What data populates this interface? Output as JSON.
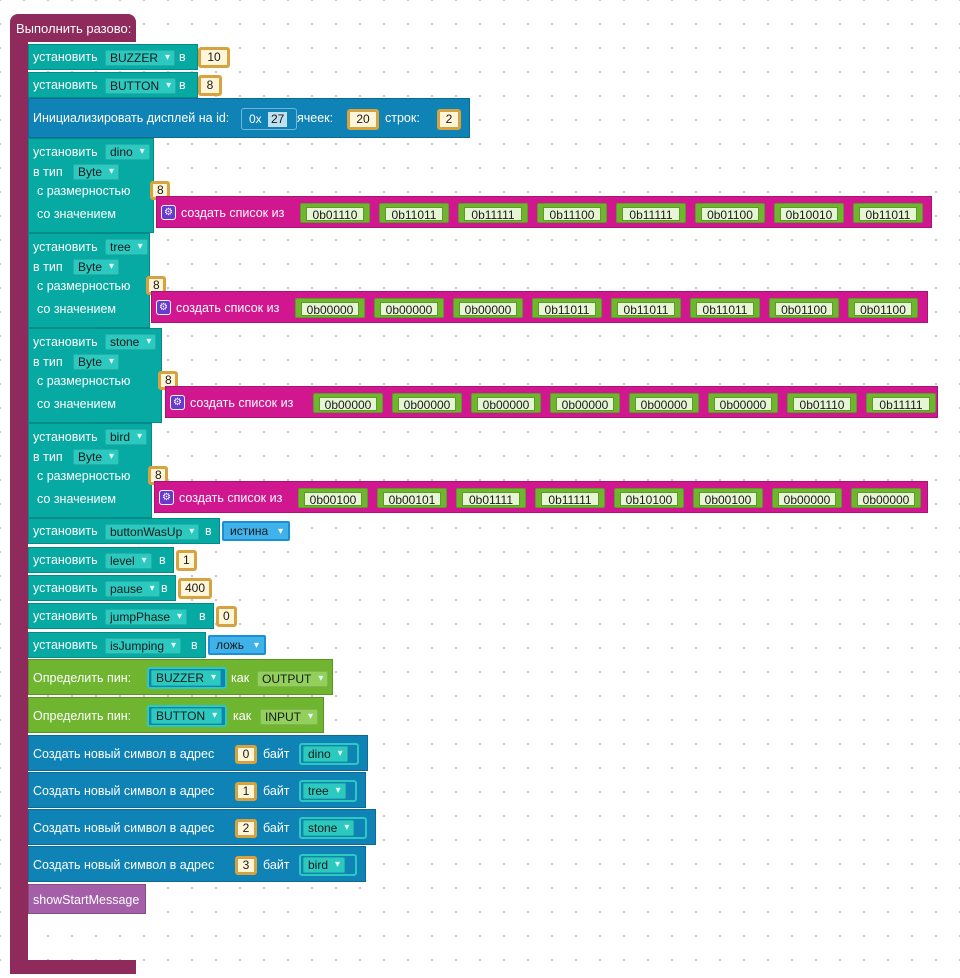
{
  "hat": {
    "label": "Выполнить разово:"
  },
  "setvars": [
    {
      "label": "установить",
      "var": "BUZZER",
      "in": "в",
      "value": "10"
    },
    {
      "label": "установить",
      "var": "BUTTON",
      "in": "в",
      "value": "8"
    }
  ],
  "display_init": {
    "label": "Инициализировать дисплей на id:",
    "hex_prefix": "0x",
    "hex_value": "27",
    "cells_label": "ячеек:",
    "cells": "20",
    "rows_label": "строк:",
    "rows": "2"
  },
  "arrays": [
    {
      "label_set": "установить",
      "name": "dino",
      "type_label": "в тип",
      "type": "Byte",
      "size_label": "с размерностью",
      "size": "8",
      "value_label": "со значением",
      "list_label": "создать список из",
      "items": [
        "0b01110",
        "0b11011",
        "0b11111",
        "0b11100",
        "0b11111",
        "0b01100",
        "0b10010",
        "0b11011"
      ]
    },
    {
      "label_set": "установить",
      "name": "tree",
      "type_label": "в тип",
      "type": "Byte",
      "size_label": "с размерностью",
      "size": "8",
      "value_label": "со значением",
      "list_label": "создать список из",
      "items": [
        "0b00000",
        "0b00000",
        "0b00000",
        "0b11011",
        "0b11011",
        "0b11011",
        "0b01100",
        "0b01100"
      ]
    },
    {
      "label_set": "установить",
      "name": "stone",
      "type_label": "в тип",
      "type": "Byte",
      "size_label": "с размерностью",
      "size": "8",
      "value_label": "со значением",
      "list_label": "создать список из",
      "items": [
        "0b00000",
        "0b00000",
        "0b00000",
        "0b00000",
        "0b00000",
        "0b00000",
        "0b01110",
        "0b11111"
      ]
    },
    {
      "label_set": "установить",
      "name": "bird",
      "type_label": "в тип",
      "type": "Byte",
      "size_label": "с размерностью",
      "size": "8",
      "value_label": "со значением",
      "list_label": "создать список из",
      "items": [
        "0b00100",
        "0b00101",
        "0b01111",
        "0b11111",
        "0b10100",
        "0b00100",
        "0b00000",
        "0b00000"
      ]
    }
  ],
  "vars2": [
    {
      "label": "установить",
      "var": "buttonWasUp",
      "in": "в",
      "value": "истина",
      "kind": "bool"
    },
    {
      "label": "установить",
      "var": "level",
      "in": "в",
      "value": "1",
      "kind": "num"
    },
    {
      "label": "установить",
      "var": "pause",
      "in": "в",
      "value": "400",
      "kind": "num"
    },
    {
      "label": "установить",
      "var": "jumpPhase",
      "in": "в",
      "value": "0",
      "kind": "num"
    },
    {
      "label": "установить",
      "var": "isJumping",
      "in": "в",
      "value": "ложь",
      "kind": "bool"
    }
  ],
  "pins": [
    {
      "label": "Определить пин:",
      "pin": "BUZZER",
      "as": "как",
      "mode": "OUTPUT"
    },
    {
      "label": "Определить пин:",
      "pin": "BUTTON",
      "as": "как",
      "mode": "INPUT"
    }
  ],
  "chars": [
    {
      "label": "Создать новый символ в адрес",
      "addr": "0",
      "bytes_label": "байт",
      "name": "dino"
    },
    {
      "label": "Создать новый символ в адрес",
      "addr": "1",
      "bytes_label": "байт",
      "name": "tree"
    },
    {
      "label": "Создать новый символ в адрес",
      "addr": "2",
      "bytes_label": "байт",
      "name": "stone"
    },
    {
      "label": "Создать новый символ в адрес",
      "addr": "3",
      "bytes_label": "байт",
      "name": "bird"
    }
  ],
  "call": {
    "label": "showStartMessage"
  },
  "colors": {
    "hat": "#8e2a5c",
    "variables": "#06aaa3",
    "display": "#0f83b5",
    "pins": "#6fb52f",
    "lists": "#d0178f",
    "numbers": "#d7a340",
    "boolean": "#3fb2ea",
    "procedure": "#a45fa8"
  }
}
